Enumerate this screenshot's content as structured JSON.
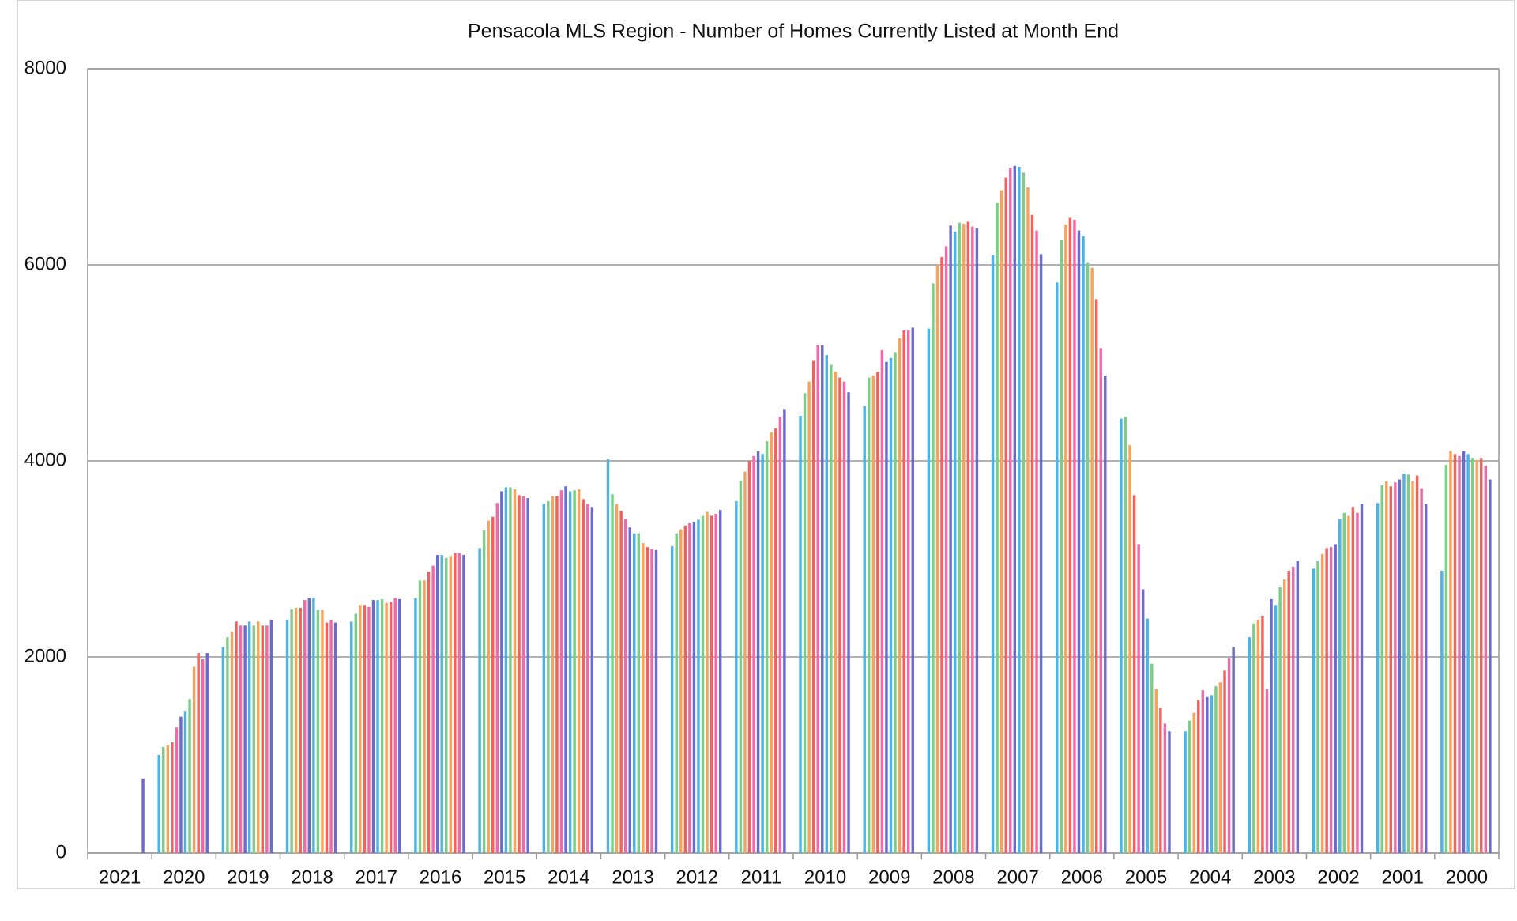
{
  "chart_data": {
    "type": "bar",
    "title": "Pensacola MLS Region - Number of Homes Currently Listed at Month End",
    "categories": [
      "2021",
      "2020",
      "2019",
      "2018",
      "2017",
      "2016",
      "2015",
      "2014",
      "2013",
      "2012",
      "2011",
      "2010",
      "2009",
      "2008",
      "2007",
      "2006",
      "2005",
      "2004",
      "2003",
      "2002",
      "2001",
      "2000"
    ],
    "ylim": [
      0,
      8000
    ],
    "yticks": [
      0,
      2000,
      4000,
      6000,
      8000
    ],
    "grid": true,
    "series": [
      {
        "color": "#4bb3e6",
        "values": [
          null,
          1000,
          2100,
          2380,
          2360,
          2600,
          3110,
          3560,
          4020,
          3130,
          3590,
          4460,
          4560,
          5350,
          6100,
          5820,
          4430,
          1240,
          2200,
          2900,
          3570,
          2880
        ]
      },
      {
        "color": "#7dcc87",
        "values": [
          null,
          1080,
          2200,
          2490,
          2440,
          2780,
          3290,
          3590,
          3660,
          3260,
          3800,
          4690,
          4850,
          5810,
          6630,
          6250,
          4450,
          1350,
          2340,
          2980,
          3750,
          3960
        ]
      },
      {
        "color": "#f6a45c",
        "values": [
          null,
          1100,
          2260,
          2500,
          2530,
          2780,
          3390,
          3640,
          3560,
          3300,
          3890,
          4810,
          4870,
          6000,
          6760,
          6410,
          4160,
          1430,
          2380,
          3050,
          3790,
          4100
        ]
      },
      {
        "color": "#f0625d",
        "values": [
          null,
          1130,
          2360,
          2500,
          2530,
          2870,
          3430,
          3640,
          3490,
          3340,
          4000,
          5020,
          4910,
          6080,
          6890,
          6480,
          3650,
          1560,
          2420,
          3110,
          3740,
          4070
        ]
      },
      {
        "color": "#ef6aa9",
        "values": [
          null,
          1280,
          2320,
          2580,
          2510,
          2930,
          3570,
          3700,
          3410,
          3370,
          4050,
          5180,
          5130,
          6190,
          6990,
          6460,
          3150,
          1660,
          1670,
          3120,
          3780,
          4050
        ]
      },
      {
        "color": "#6b6bcc",
        "values": [
          null,
          1390,
          2320,
          2600,
          2580,
          3040,
          3690,
          3740,
          3320,
          3380,
          4100,
          5180,
          5010,
          6400,
          7010,
          6350,
          2690,
          1590,
          2590,
          3150,
          3810,
          4100
        ]
      },
      {
        "color": "#4bb3e6",
        "values": [
          null,
          1450,
          2360,
          2600,
          2580,
          3040,
          3730,
          3690,
          3260,
          3400,
          4070,
          5080,
          5050,
          6340,
          7000,
          6290,
          2390,
          1610,
          2530,
          3410,
          3870,
          4070
        ]
      },
      {
        "color": "#7dcc87",
        "values": [
          null,
          1570,
          2320,
          2480,
          2590,
          3010,
          3730,
          3700,
          3260,
          3440,
          4200,
          4980,
          5110,
          6430,
          6940,
          6020,
          1930,
          1700,
          2710,
          3470,
          3860,
          4030
        ]
      },
      {
        "color": "#f6a45c",
        "values": [
          null,
          1900,
          2360,
          2480,
          2550,
          3030,
          3710,
          3710,
          3160,
          3480,
          4290,
          4910,
          5250,
          6420,
          6790,
          5970,
          1670,
          1740,
          2790,
          3440,
          3790,
          4010
        ]
      },
      {
        "color": "#f0625d",
        "values": [
          null,
          2040,
          2320,
          2350,
          2560,
          3060,
          3650,
          3610,
          3120,
          3440,
          4330,
          4850,
          5330,
          6440,
          6510,
          5650,
          1480,
          1860,
          2880,
          3530,
          3850,
          4030
        ]
      },
      {
        "color": "#ef6aa9",
        "values": [
          null,
          1980,
          2320,
          2380,
          2600,
          3060,
          3640,
          3560,
          3100,
          3460,
          4450,
          4810,
          5330,
          6390,
          6350,
          5150,
          1320,
          1990,
          2920,
          3470,
          3720,
          3950
        ]
      },
      {
        "color": "#6b6bcc",
        "values": [
          760,
          2040,
          2380,
          2350,
          2590,
          3040,
          3620,
          3530,
          3090,
          3500,
          4530,
          4700,
          5360,
          6370,
          6110,
          4870,
          1240,
          2100,
          2980,
          3560,
          3560,
          3810
        ]
      }
    ]
  }
}
